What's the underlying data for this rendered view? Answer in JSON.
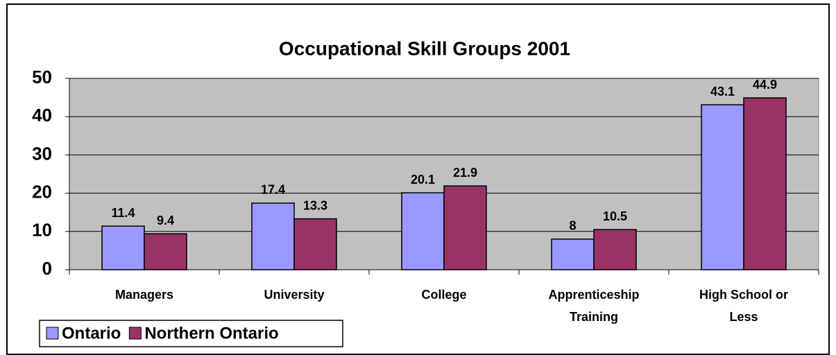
{
  "chart_data": {
    "type": "bar",
    "title": "Occupational Skill Groups 2001",
    "categories": [
      "Managers",
      "University",
      "College",
      "Apprenticeship Training",
      "High School or Less"
    ],
    "series": [
      {
        "name": "Ontario",
        "color": "#9999ff",
        "values": [
          11.4,
          17.4,
          20.1,
          8,
          43.1
        ]
      },
      {
        "name": "Northern Ontario",
        "color": "#993366",
        "values": [
          9.4,
          13.3,
          21.9,
          10.5,
          44.9
        ]
      }
    ],
    "ylim": [
      0,
      50
    ],
    "yticks": [
      0,
      10,
      20,
      30,
      40,
      50
    ],
    "grid": true,
    "legend": "bottom-left"
  }
}
